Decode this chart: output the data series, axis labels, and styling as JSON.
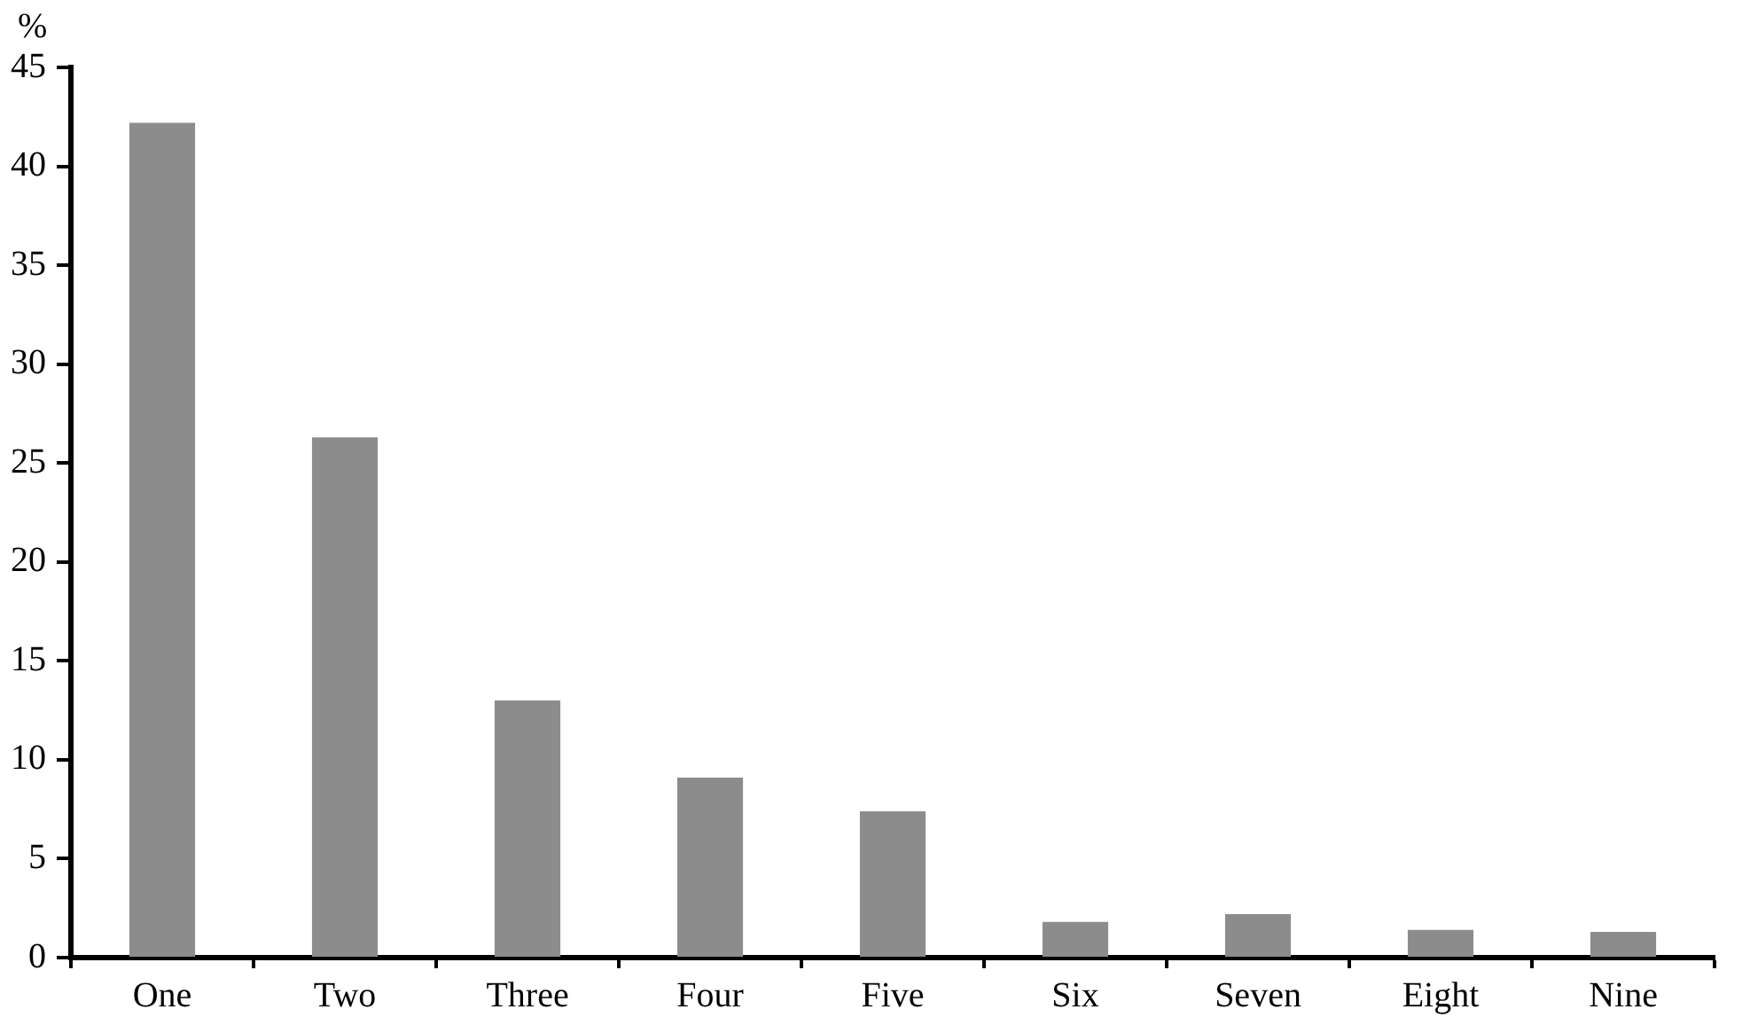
{
  "chart_data": {
    "type": "bar",
    "ylabel": "%",
    "categories": [
      "One",
      "Two",
      "Three",
      "Four",
      "Five",
      "Six",
      "Seven",
      "Eight",
      "Nine"
    ],
    "values": [
      42.2,
      26.3,
      13.0,
      9.1,
      7.4,
      1.8,
      2.2,
      1.4,
      1.3
    ],
    "color": "#8c8c8c",
    "ylim": [
      0,
      45
    ],
    "yticks": [
      0,
      5,
      10,
      15,
      20,
      25,
      30,
      35,
      40,
      45
    ],
    "grid": false
  }
}
